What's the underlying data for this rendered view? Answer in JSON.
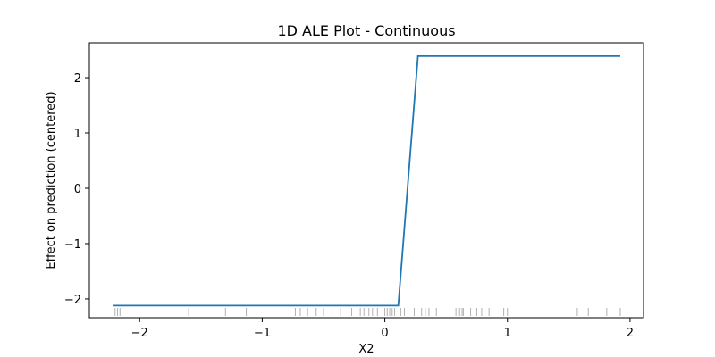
{
  "chart_data": {
    "type": "line",
    "title": "1D ALE Plot - Continuous",
    "xlabel": "X2",
    "ylabel": "Effect on prediction (centered)",
    "xlim": [
      -2.41,
      2.11
    ],
    "ylim": [
      -2.34,
      2.63
    ],
    "xticks": [
      -2,
      -1,
      0,
      1,
      2
    ],
    "xtick_labels": [
      "−2",
      "−1",
      "0",
      "1",
      "2"
    ],
    "yticks": [
      -2,
      -1,
      0,
      1,
      2
    ],
    "ytick_labels": [
      "−2",
      "−1",
      "0",
      "1",
      "2"
    ],
    "grid": false,
    "line_color": "#1f77b4",
    "rug_color": "#b0b0b0",
    "series": [
      {
        "x": [
          -2.22,
          0.11,
          0.27,
          1.92
        ],
        "y": [
          -2.12,
          -2.12,
          2.39,
          2.39
        ]
      }
    ],
    "rug": [
      -2.2,
      -2.18,
      -2.16,
      -1.6,
      -1.3,
      -1.13,
      -0.73,
      -0.69,
      -0.63,
      -0.56,
      -0.5,
      -0.43,
      -0.36,
      -0.27,
      -0.2,
      -0.17,
      -0.13,
      -0.1,
      -0.06,
      0.0,
      0.02,
      0.04,
      0.06,
      0.08,
      0.13,
      0.16,
      0.24,
      0.3,
      0.33,
      0.36,
      0.42,
      0.58,
      0.61,
      0.63,
      0.64,
      0.7,
      0.75,
      0.79,
      0.85,
      0.97,
      1.0,
      1.57,
      1.66,
      1.81,
      1.92
    ]
  }
}
